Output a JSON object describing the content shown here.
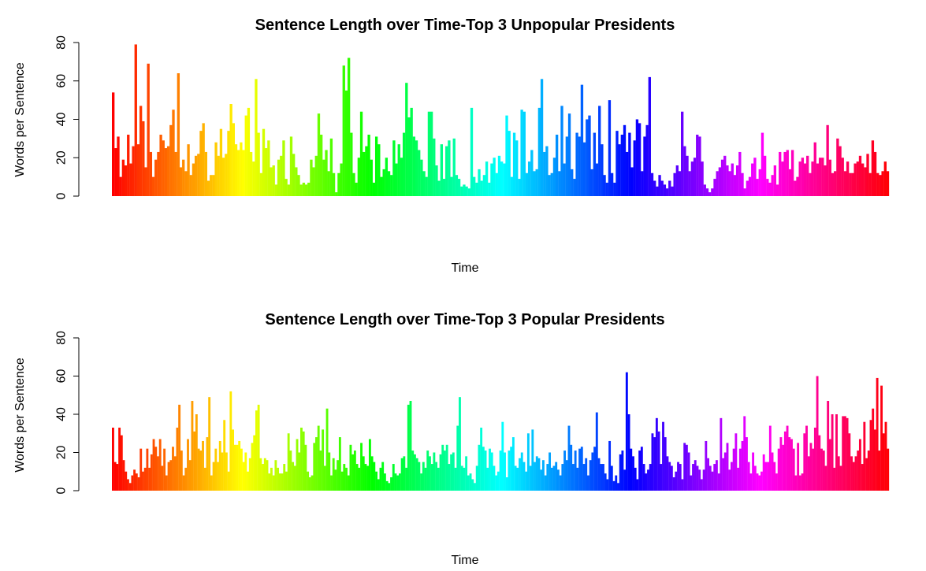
{
  "chart_data": [
    {
      "type": "bar",
      "title": "Sentence Length over Time-Top 3 Unpopular Presidents",
      "xlabel": "Time",
      "ylabel": "Words per Sentence",
      "ylim": [
        0,
        80
      ],
      "yticks": [
        0,
        20,
        40,
        60,
        80
      ],
      "grid": false,
      "color_scheme": "rainbow",
      "values": [
        54,
        25,
        31,
        10,
        19,
        16,
        32,
        17,
        26,
        79,
        27,
        47,
        39,
        15,
        69,
        23,
        10,
        19,
        23,
        32,
        29,
        25,
        26,
        37,
        45,
        23,
        64,
        15,
        19,
        13,
        27,
        11,
        17,
        21,
        22,
        34,
        38,
        23,
        8,
        11,
        11,
        28,
        21,
        35,
        20,
        22,
        34,
        48,
        38,
        27,
        24,
        28,
        24,
        42,
        46,
        23,
        18,
        61,
        33,
        12,
        35,
        25,
        29,
        15,
        16,
        6,
        19,
        21,
        29,
        9,
        6,
        31,
        22,
        15,
        11,
        6,
        7,
        6,
        7,
        19,
        15,
        21,
        43,
        32,
        19,
        24,
        13,
        30,
        12,
        2,
        12,
        17,
        68,
        55,
        72,
        33,
        12,
        7,
        20,
        44,
        23,
        26,
        32,
        19,
        7,
        31,
        27,
        10,
        14,
        20,
        13,
        11,
        29,
        17,
        27,
        20,
        33,
        59,
        41,
        46,
        31,
        29,
        24,
        19,
        13,
        10,
        44,
        44,
        30,
        16,
        8,
        27,
        9,
        26,
        29,
        10,
        30,
        11,
        9,
        5,
        6,
        5,
        4,
        46,
        10,
        7,
        14,
        8,
        11,
        18,
        7,
        17,
        20,
        12,
        21,
        18,
        17,
        42,
        34,
        10,
        33,
        29,
        9,
        45,
        44,
        12,
        18,
        24,
        13,
        14,
        46,
        61,
        23,
        26,
        11,
        12,
        20,
        32,
        13,
        47,
        17,
        31,
        43,
        14,
        9,
        33,
        31,
        58,
        28,
        40,
        42,
        14,
        33,
        17,
        47,
        27,
        11,
        7,
        50,
        12,
        7,
        34,
        27,
        32,
        37,
        23,
        33,
        15,
        29,
        40,
        38,
        13,
        31,
        37,
        62,
        12,
        8,
        5,
        11,
        8,
        6,
        4,
        8,
        5,
        12,
        16,
        13,
        44,
        26,
        21,
        13,
        18,
        20,
        32,
        31,
        18,
        6,
        4,
        2,
        4,
        9,
        13,
        15,
        19,
        21,
        16,
        13,
        17,
        11,
        16,
        23,
        12,
        4,
        8,
        10,
        17,
        20,
        9,
        14,
        33,
        21,
        9,
        7,
        11,
        16,
        6,
        23,
        18,
        23,
        24,
        14,
        24,
        8,
        10,
        18,
        20,
        17,
        21,
        12,
        18,
        28,
        17,
        20,
        20,
        16,
        37,
        19,
        12,
        13,
        30,
        26,
        20,
        13,
        18,
        12,
        12,
        17,
        18,
        21,
        17,
        15,
        22,
        12,
        29,
        23,
        12,
        11,
        13,
        18,
        13
      ]
    },
    {
      "type": "bar",
      "title": "Sentence Length over Time-Top 3 Popular Presidents",
      "xlabel": "Time",
      "ylabel": "Words per Sentence",
      "ylim": [
        0,
        80
      ],
      "yticks": [
        0,
        20,
        40,
        60,
        80
      ],
      "grid": false,
      "color_scheme": "rainbow",
      "values": [
        33,
        15,
        14,
        33,
        29,
        16,
        10,
        6,
        4,
        8,
        11,
        9,
        7,
        22,
        10,
        12,
        22,
        12,
        19,
        27,
        23,
        18,
        27,
        13,
        22,
        8,
        15,
        16,
        23,
        18,
        33,
        45,
        21,
        8,
        12,
        27,
        16,
        47,
        31,
        40,
        22,
        21,
        26,
        12,
        28,
        49,
        8,
        15,
        22,
        15,
        26,
        20,
        37,
        20,
        10,
        52,
        32,
        24,
        24,
        26,
        22,
        15,
        20,
        10,
        17,
        25,
        29,
        42,
        45,
        17,
        14,
        17,
        16,
        9,
        12,
        8,
        16,
        12,
        9,
        9,
        14,
        10,
        30,
        21,
        15,
        13,
        27,
        20,
        33,
        31,
        24,
        10,
        7,
        8,
        25,
        28,
        34,
        21,
        32,
        13,
        43,
        20,
        8,
        17,
        11,
        16,
        28,
        10,
        14,
        12,
        8,
        24,
        19,
        21,
        14,
        12,
        25,
        18,
        14,
        13,
        27,
        18,
        15,
        10,
        6,
        12,
        15,
        9,
        5,
        4,
        7,
        14,
        9,
        8,
        9,
        17,
        18,
        12,
        45,
        47,
        21,
        19,
        17,
        15,
        9,
        15,
        12,
        21,
        18,
        14,
        20,
        15,
        12,
        19,
        24,
        21,
        24,
        14,
        19,
        20,
        12,
        34,
        49,
        13,
        12,
        18,
        8,
        9,
        6,
        4,
        13,
        24,
        33,
        23,
        21,
        12,
        22,
        20,
        13,
        8,
        10,
        21,
        36,
        20,
        7,
        21,
        23,
        28,
        13,
        12,
        17,
        20,
        15,
        10,
        30,
        13,
        32,
        15,
        18,
        17,
        11,
        16,
        8,
        14,
        20,
        12,
        13,
        15,
        11,
        8,
        14,
        21,
        16,
        34,
        24,
        14,
        21,
        12,
        22,
        23,
        14,
        17,
        8,
        16,
        20,
        23,
        41,
        17,
        14,
        14,
        9,
        6,
        26,
        13,
        5,
        8,
        4,
        19,
        21,
        11,
        62,
        40,
        22,
        18,
        12,
        6,
        21,
        23,
        14,
        9,
        11,
        14,
        30,
        28,
        38,
        31,
        14,
        36,
        28,
        18,
        15,
        13,
        7,
        10,
        15,
        14,
        6,
        25,
        24,
        20,
        8,
        14,
        16,
        13,
        11,
        6,
        11,
        26,
        17,
        13,
        10,
        14,
        16,
        9,
        38,
        17,
        20,
        25,
        11,
        15,
        22,
        30,
        12,
        22,
        26,
        39,
        28,
        15,
        9,
        20,
        13,
        9,
        8,
        10,
        19,
        15,
        15,
        34,
        20,
        15,
        9,
        22,
        28,
        24,
        31,
        34,
        28,
        27,
        22,
        8,
        25,
        8,
        9,
        30,
        34,
        18,
        25,
        22,
        33,
        60,
        29,
        22,
        21,
        13,
        47,
        27,
        40,
        12,
        40,
        18,
        13,
        39,
        39,
        38,
        30,
        18,
        15,
        18,
        21,
        27,
        14,
        36,
        17,
        21,
        37,
        43,
        32,
        59,
        21,
        55,
        30,
        36,
        22
      ]
    }
  ]
}
